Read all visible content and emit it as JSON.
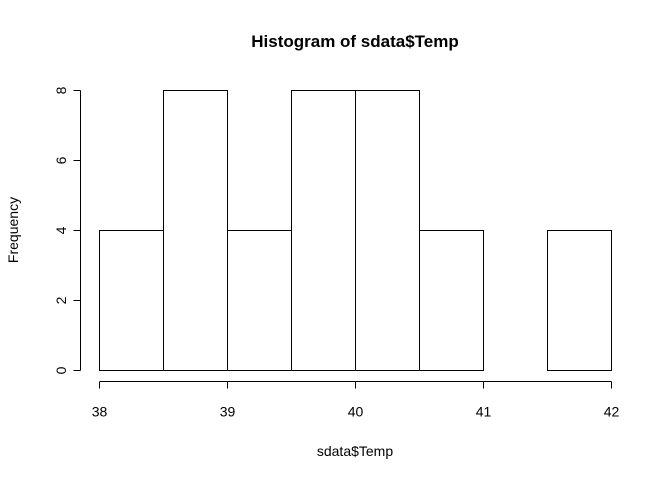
{
  "chart_data": {
    "type": "bar",
    "title": "Histogram of sdata$Temp",
    "xlabel": "sdata$Temp",
    "ylabel": "Frequency",
    "bins": [
      {
        "from": 38.0,
        "to": 38.5,
        "count": 4
      },
      {
        "from": 38.5,
        "to": 39.0,
        "count": 8
      },
      {
        "from": 39.0,
        "to": 39.5,
        "count": 4
      },
      {
        "from": 39.5,
        "to": 40.0,
        "count": 8
      },
      {
        "from": 40.0,
        "to": 40.5,
        "count": 8
      },
      {
        "from": 40.5,
        "to": 41.0,
        "count": 4
      },
      {
        "from": 41.0,
        "to": 41.5,
        "count": 0
      },
      {
        "from": 41.5,
        "to": 42.0,
        "count": 4
      }
    ],
    "xlim": [
      38,
      42
    ],
    "ylim": [
      0,
      8
    ],
    "x_ticks": [
      "38",
      "39",
      "40",
      "41",
      "42"
    ],
    "y_ticks": [
      "0",
      "2",
      "4",
      "6",
      "8"
    ],
    "grid": false,
    "legend": "none",
    "colors": {
      "bar_fill": "#ffffff",
      "bar_stroke": "#000000",
      "axis": "#000000"
    }
  }
}
